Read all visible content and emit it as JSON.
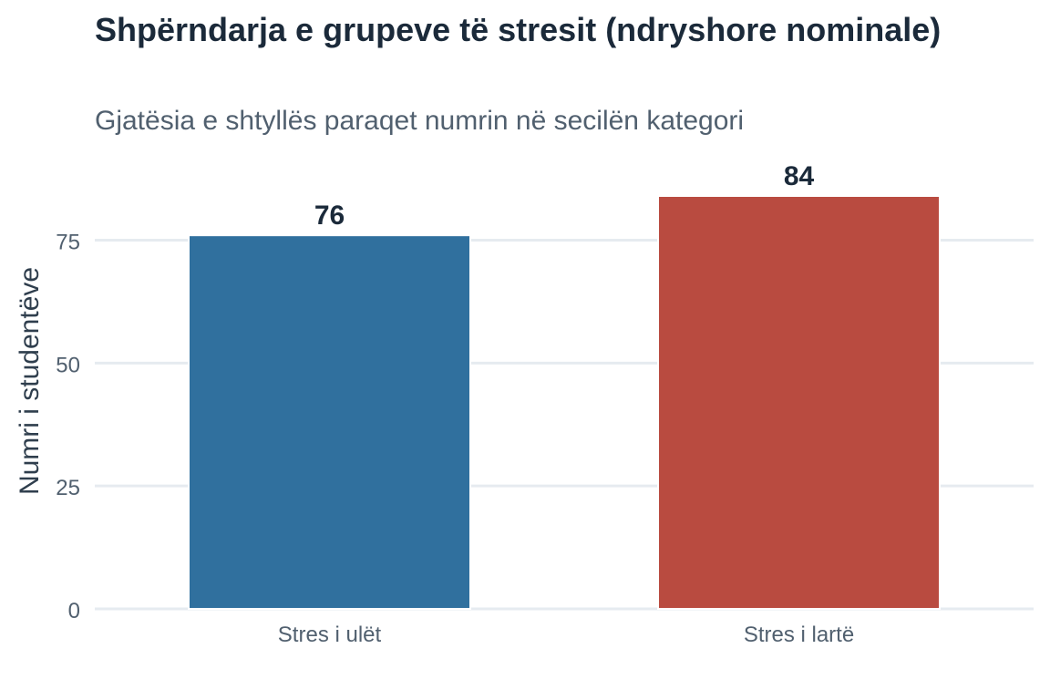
{
  "chart_data": {
    "type": "bar",
    "title": "Shpërndarja e grupeve të stresit (ndryshore nominale)",
    "subtitle": "Gjatësia e shtyllës paraqet numrin në secilën kategori",
    "xlabel": "",
    "ylabel": "Numri i studentëve",
    "categories": [
      "Stres i ulët",
      "Stres i lartë"
    ],
    "values": [
      76,
      84
    ],
    "data_labels": [
      "76",
      "84"
    ],
    "colors": [
      "#30709e",
      "#b94b40"
    ],
    "ylim": [
      0,
      84
    ],
    "yticks": [
      0,
      25,
      50,
      75
    ],
    "ytick_labels": [
      "0",
      "25",
      "50",
      "75"
    ],
    "grid": "horizontal",
    "legend": "none"
  }
}
